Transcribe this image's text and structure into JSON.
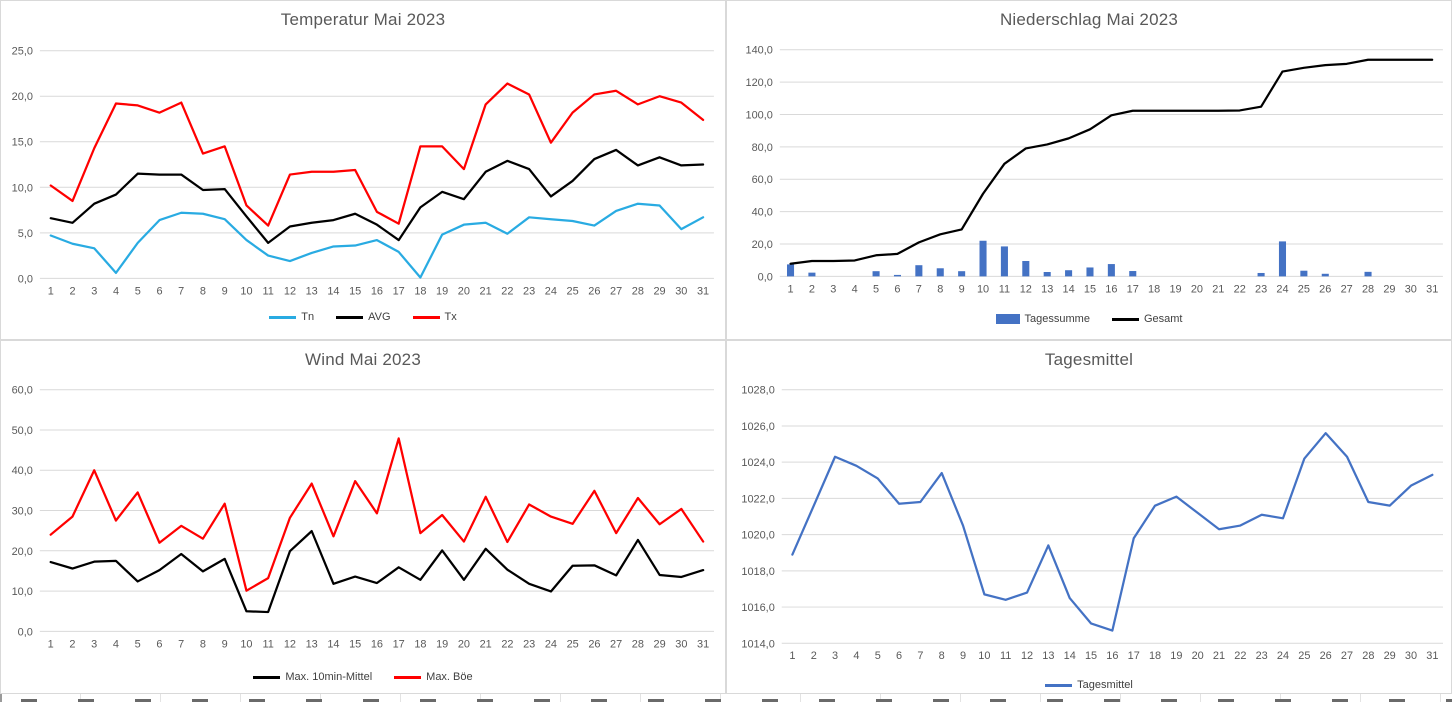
{
  "page": {
    "background": "#FFFFFF",
    "grid_color": "#D9D9D9",
    "axis_text_color": "#595959",
    "title_color": "#595959",
    "legend_text_color": "#404040"
  },
  "charts": [
    {
      "id": "temperature",
      "title": "Temperatur Mai 2023",
      "chart_data": {
        "type": "line",
        "categories": [
          1,
          2,
          3,
          4,
          5,
          6,
          7,
          8,
          9,
          10,
          11,
          12,
          13,
          14,
          15,
          16,
          17,
          18,
          19,
          20,
          21,
          22,
          23,
          24,
          25,
          26,
          27,
          28,
          29,
          30,
          31
        ],
        "ylim": [
          0,
          25
        ],
        "ytick_step": 5,
        "ytick_labels": [
          "0,0",
          "5,0",
          "10,0",
          "15,0",
          "20,0",
          "25,0"
        ],
        "grid": "horizontal",
        "legend_position": "bottom",
        "series": [
          {
            "name": "Tn",
            "type": "line",
            "color": "#29ABE2",
            "values": [
              4.7,
              3.8,
              3.3,
              0.6,
              3.9,
              6.4,
              7.2,
              7.1,
              6.5,
              4.2,
              2.5,
              1.9,
              2.8,
              3.5,
              3.6,
              4.2,
              2.9,
              0.1,
              4.8,
              5.9,
              6.1,
              4.9,
              6.7,
              6.5,
              6.3,
              5.8,
              7.4,
              8.2,
              8.0,
              5.4,
              6.7
            ]
          },
          {
            "name": "AVG",
            "type": "line",
            "color": "#000000",
            "values": [
              6.6,
              6.1,
              8.2,
              9.2,
              11.5,
              11.4,
              11.4,
              9.7,
              9.8,
              6.8,
              3.9,
              5.7,
              6.1,
              6.4,
              7.1,
              5.9,
              4.2,
              7.8,
              9.5,
              8.7,
              11.7,
              12.9,
              12.0,
              9.0,
              10.7,
              13.1,
              14.1,
              12.4,
              13.3,
              12.4,
              12.5
            ]
          },
          {
            "name": "Tx",
            "type": "line",
            "color": "#FF0000",
            "values": [
              10.2,
              8.5,
              14.3,
              19.2,
              19.0,
              18.2,
              19.3,
              13.7,
              14.5,
              8.0,
              5.8,
              11.4,
              11.7,
              11.7,
              11.9,
              7.3,
              6.0,
              14.5,
              14.5,
              12.0,
              19.1,
              21.4,
              20.2,
              14.9,
              18.2,
              20.2,
              20.6,
              19.1,
              20.0,
              19.3,
              17.4
            ]
          }
        ]
      }
    },
    {
      "id": "precipitation",
      "title": "Niederschlag Mai 2023",
      "chart_data": {
        "type": "combo",
        "categories": [
          1,
          2,
          3,
          4,
          5,
          6,
          7,
          8,
          9,
          10,
          11,
          12,
          13,
          14,
          15,
          16,
          17,
          18,
          19,
          20,
          21,
          22,
          23,
          24,
          25,
          26,
          27,
          28,
          29,
          30,
          31
        ],
        "ylim": [
          0,
          140
        ],
        "ytick_step": 20,
        "ytick_labels": [
          "0,0",
          "20,0",
          "40,0",
          "60,0",
          "80,0",
          "100,0",
          "120,0",
          "140,0"
        ],
        "grid": "horizontal",
        "legend_position": "bottom",
        "series": [
          {
            "name": "Tagessumme",
            "type": "bar",
            "color": "#4472C4",
            "values": [
              7.4,
              2.3,
              0,
              0,
              3.2,
              0.9,
              6.9,
              5.0,
              3.2,
              22.0,
              18.5,
              9.5,
              2.7,
              3.8,
              5.5,
              7.6,
              3.3,
              0,
              0,
              0,
              0,
              0,
              2.1,
              21.6,
              3.5,
              1.6,
              0,
              2.8,
              0,
              0,
              0
            ]
          },
          {
            "name": "Gesamt",
            "type": "line",
            "color": "#000000",
            "values": [
              7.8,
              9.5,
              9.5,
              9.8,
              13.0,
              13.9,
              21.0,
              26.0,
              29.0,
              51.0,
              69.5,
              79.0,
              81.5,
              85.2,
              90.8,
              99.5,
              102.3,
              102.3,
              102.3,
              102.3,
              102.3,
              102.5,
              104.8,
              126.5,
              128.8,
              130.5,
              131.3,
              133.8,
              133.8,
              133.8,
              133.8
            ]
          }
        ]
      }
    },
    {
      "id": "wind",
      "title": "Wind Mai 2023",
      "chart_data": {
        "type": "line",
        "categories": [
          1,
          2,
          3,
          4,
          5,
          6,
          7,
          8,
          9,
          10,
          11,
          12,
          13,
          14,
          15,
          16,
          17,
          18,
          19,
          20,
          21,
          22,
          23,
          24,
          25,
          26,
          27,
          28,
          29,
          30,
          31
        ],
        "ylim": [
          0,
          60
        ],
        "ytick_step": 10,
        "ytick_labels": [
          "0,0",
          "10,0",
          "20,0",
          "30,0",
          "40,0",
          "50,0",
          "60,0"
        ],
        "grid": "horizontal",
        "legend_position": "bottom",
        "series": [
          {
            "name": "Max. 10min-Mittel",
            "type": "line",
            "color": "#000000",
            "values": [
              17.2,
              15.6,
              17.3,
              17.5,
              12.4,
              15.2,
              19.2,
              14.9,
              18.0,
              5.0,
              4.8,
              19.9,
              24.9,
              11.8,
              13.6,
              12.0,
              15.9,
              12.8,
              20.1,
              12.8,
              20.5,
              15.3,
              11.8,
              9.9,
              16.3,
              16.4,
              13.9,
              22.7,
              14.0,
              13.5,
              15.2
            ]
          },
          {
            "name": "Max. Böe",
            "type": "line",
            "color": "#FF0000",
            "values": [
              24.0,
              28.5,
              40.0,
              27.5,
              34.5,
              22.0,
              26.2,
              23.0,
              31.7,
              10.1,
              13.2,
              28.2,
              36.7,
              23.6,
              37.3,
              29.3,
              47.9,
              24.4,
              28.9,
              22.3,
              33.4,
              22.2,
              31.5,
              28.5,
              26.7,
              34.9,
              24.4,
              33.1,
              26.6,
              30.4,
              22.3
            ]
          }
        ]
      }
    },
    {
      "id": "pressure",
      "title": "Tagesmittel",
      "chart_data": {
        "type": "line",
        "categories": [
          1,
          2,
          3,
          4,
          5,
          6,
          7,
          8,
          9,
          10,
          11,
          12,
          13,
          14,
          15,
          16,
          17,
          18,
          19,
          20,
          21,
          22,
          23,
          24,
          25,
          26,
          27,
          28,
          29,
          30,
          31
        ],
        "ylim": [
          1014,
          1028
        ],
        "ytick_step": 2,
        "ytick_labels": [
          "1014,0",
          "1016,0",
          "1018,0",
          "1020,0",
          "1022,0",
          "1024,0",
          "1026,0",
          "1028,0"
        ],
        "grid": "horizontal",
        "legend_position": "bottom",
        "series": [
          {
            "name": "Tagesmittel",
            "type": "line",
            "color": "#4472C4",
            "values": [
              1018.9,
              1021.6,
              1024.3,
              1023.8,
              1023.1,
              1021.7,
              1021.8,
              1023.4,
              1020.5,
              1016.7,
              1016.4,
              1016.8,
              1019.4,
              1016.5,
              1015.1,
              1014.7,
              1019.8,
              1021.6,
              1022.1,
              1021.2,
              1020.3,
              1020.5,
              1021.1,
              1020.9,
              1024.2,
              1025.6,
              1024.3,
              1021.8,
              1021.6,
              1022.7,
              1023.3
            ]
          }
        ]
      }
    }
  ]
}
